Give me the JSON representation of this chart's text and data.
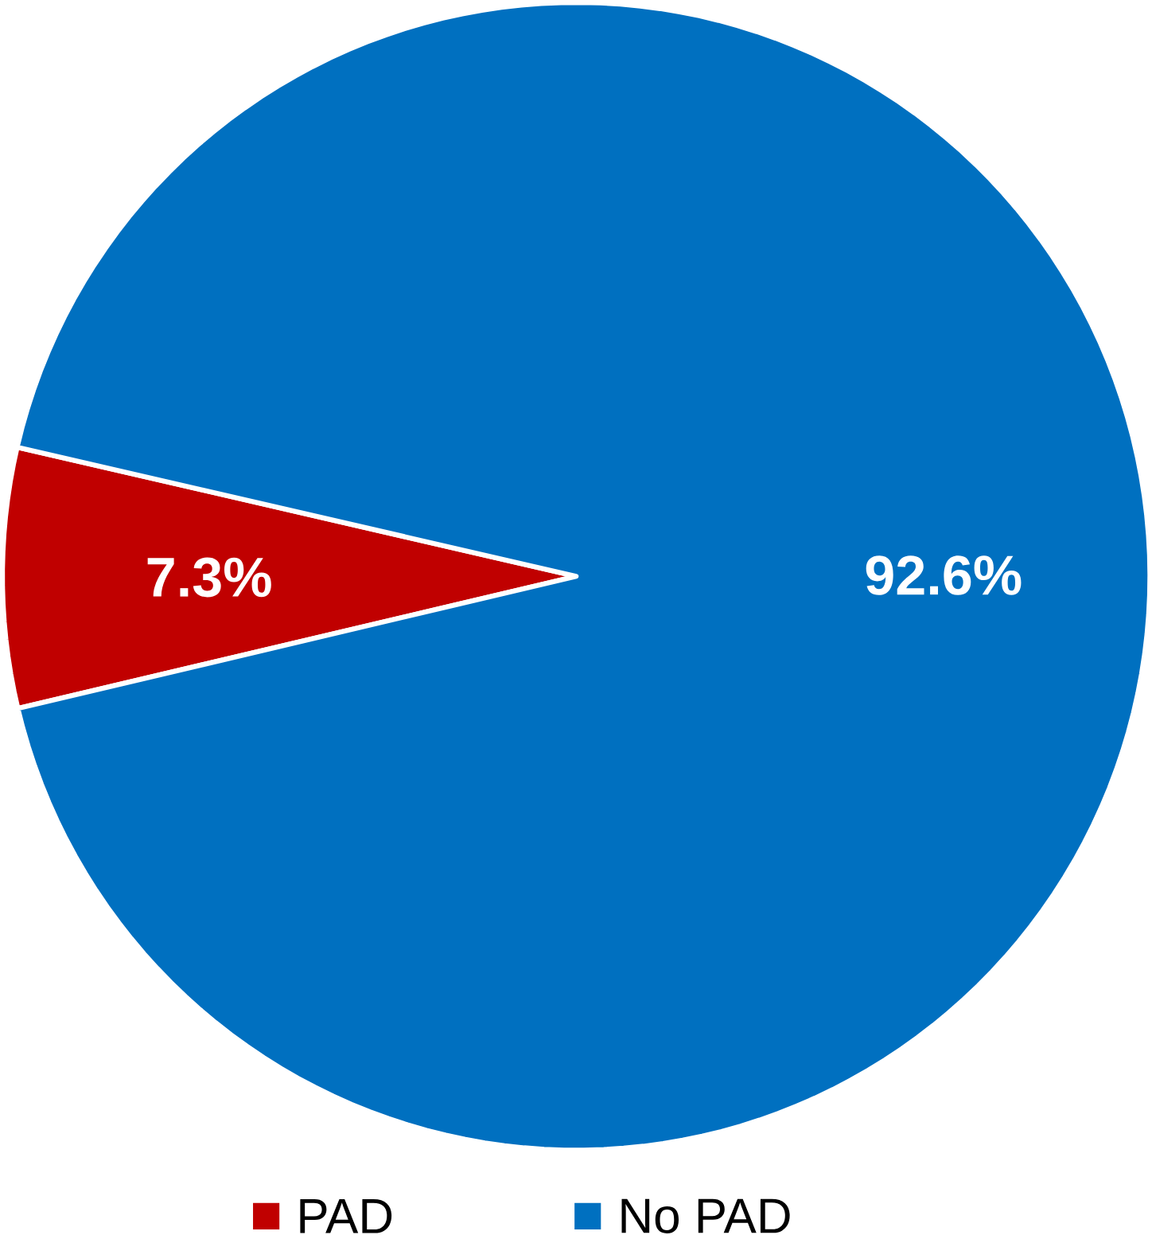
{
  "chart_data": {
    "type": "pie",
    "categories": [
      "PAD",
      "No PAD"
    ],
    "values": [
      7.3,
      92.6
    ],
    "colors": [
      "#c00000",
      "#0070c0"
    ],
    "value_labels": [
      "7.3%",
      "92.6%"
    ],
    "legend": "bottom"
  }
}
